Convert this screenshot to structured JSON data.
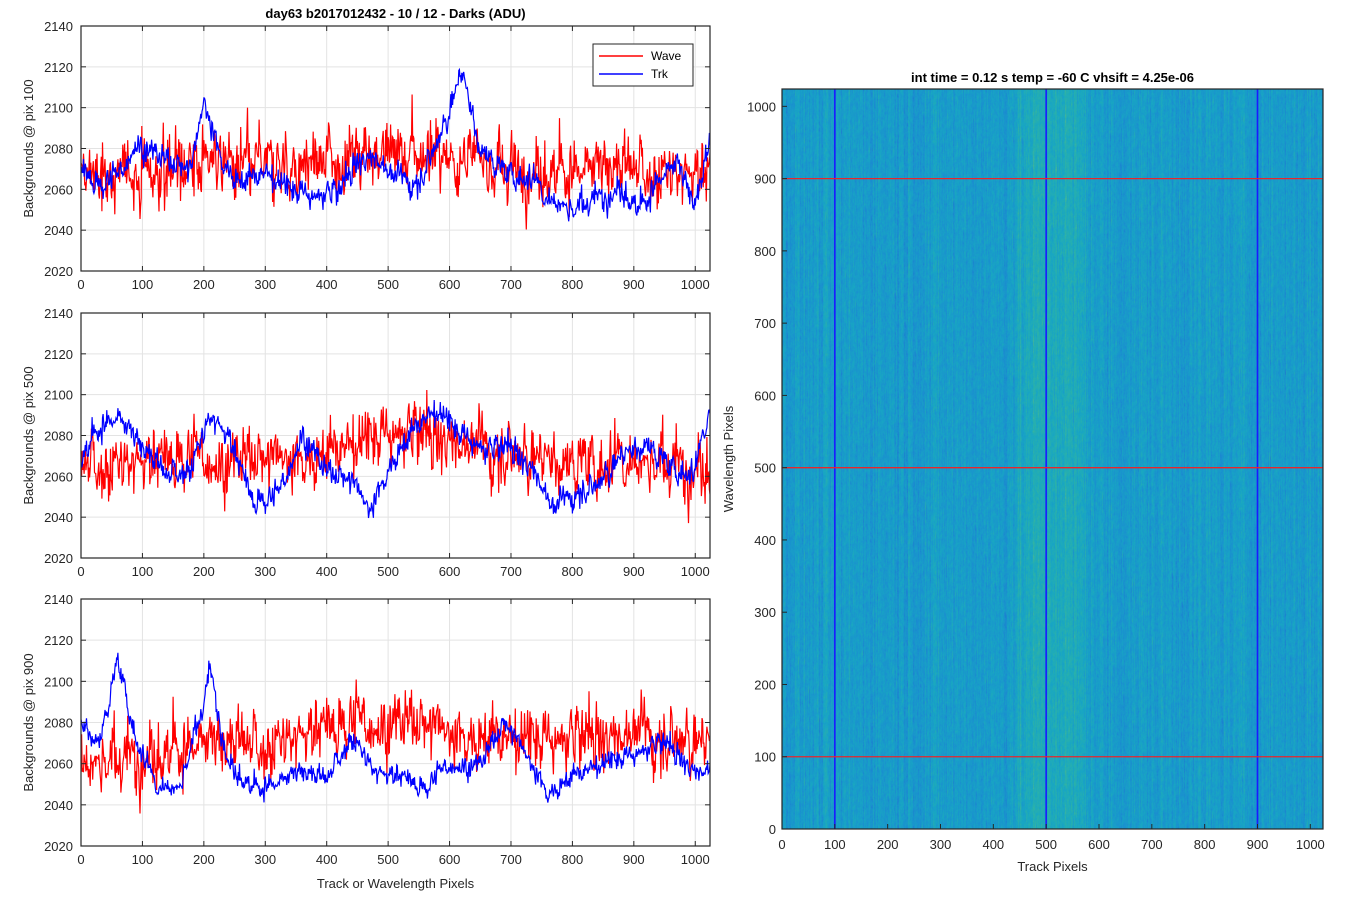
{
  "figure": {
    "main_title": "day63 b2017012432 - 10 / 12 - Darks (ADU)"
  },
  "chart_data": [
    {
      "type": "line",
      "name": "pix100",
      "title": "day63 b2017012432 - 10 / 12 - Darks (ADU)",
      "xlabel": "",
      "ylabel": "Backgrounds @ pix 100",
      "xlim": [
        0,
        1024
      ],
      "ylim": [
        2020,
        2140
      ],
      "xticks": [
        "0",
        "100",
        "200",
        "300",
        "400",
        "500",
        "600",
        "700",
        "800",
        "900",
        "1000"
      ],
      "yticks": [
        "2020",
        "2040",
        "2060",
        "2080",
        "2100",
        "2120",
        "2140"
      ],
      "grid": true,
      "legend": {
        "position": "top-right",
        "entries": [
          "Wave",
          "Trk"
        ]
      },
      "series": [
        {
          "name": "Wave",
          "color": "#ff0000",
          "noise_amp": 14,
          "x": [
            0,
            100,
            200,
            300,
            400,
            500,
            600,
            700,
            800,
            900,
            1024
          ],
          "y": [
            2064,
            2068,
            2072,
            2070,
            2074,
            2080,
            2076,
            2070,
            2068,
            2070,
            2068
          ]
        },
        {
          "name": "Trk",
          "color": "#0000ff",
          "noise_amp": 6,
          "x": [
            0,
            30,
            60,
            90,
            120,
            150,
            180,
            200,
            230,
            260,
            300,
            340,
            380,
            420,
            450,
            480,
            510,
            550,
            590,
            620,
            650,
            690,
            730,
            760,
            800,
            840,
            880,
            910,
            940,
            970,
            1000,
            1024
          ],
          "y": [
            2070,
            2062,
            2066,
            2084,
            2078,
            2072,
            2070,
            2104,
            2074,
            2064,
            2068,
            2060,
            2056,
            2058,
            2074,
            2076,
            2066,
            2064,
            2090,
            2118,
            2080,
            2068,
            2066,
            2056,
            2050,
            2056,
            2060,
            2050,
            2064,
            2072,
            2052,
            2082
          ]
        }
      ]
    },
    {
      "type": "line",
      "name": "pix500",
      "title": "",
      "xlabel": "",
      "ylabel": "Backgrounds @ pix 500",
      "xlim": [
        0,
        1024
      ],
      "ylim": [
        2020,
        2140
      ],
      "xticks": [
        "0",
        "100",
        "200",
        "300",
        "400",
        "500",
        "600",
        "700",
        "800",
        "900",
        "1000"
      ],
      "yticks": [
        "2020",
        "2040",
        "2060",
        "2080",
        "2100",
        "2120",
        "2140"
      ],
      "grid": true,
      "series": [
        {
          "name": "Wave",
          "color": "#ff0000",
          "noise_amp": 14,
          "x": [
            0,
            100,
            200,
            300,
            400,
            500,
            600,
            700,
            800,
            900,
            1024
          ],
          "y": [
            2066,
            2068,
            2070,
            2068,
            2072,
            2080,
            2078,
            2072,
            2066,
            2068,
            2064
          ]
        },
        {
          "name": "Trk",
          "color": "#0000ff",
          "noise_amp": 6,
          "x": [
            0,
            30,
            60,
            100,
            140,
            180,
            210,
            240,
            280,
            320,
            360,
            400,
            440,
            470,
            510,
            550,
            580,
            620,
            660,
            700,
            740,
            770,
            800,
            840,
            880,
            920,
            960,
            1000,
            1024
          ],
          "y": [
            2068,
            2084,
            2088,
            2074,
            2060,
            2066,
            2090,
            2080,
            2048,
            2050,
            2082,
            2062,
            2058,
            2044,
            2070,
            2086,
            2092,
            2080,
            2072,
            2074,
            2062,
            2044,
            2052,
            2056,
            2070,
            2076,
            2064,
            2062,
            2096
          ]
        }
      ]
    },
    {
      "type": "line",
      "name": "pix900",
      "title": "",
      "xlabel": "Track or Wavelength Pixels",
      "ylabel": "Backgrounds @ pix 900",
      "xlim": [
        0,
        1024
      ],
      "ylim": [
        2020,
        2140
      ],
      "xticks": [
        "0",
        "100",
        "200",
        "300",
        "400",
        "500",
        "600",
        "700",
        "800",
        "900",
        "1000"
      ],
      "yticks": [
        "2020",
        "2040",
        "2060",
        "2080",
        "2100",
        "2120",
        "2140"
      ],
      "grid": true,
      "series": [
        {
          "name": "Wave",
          "color": "#ff0000",
          "noise_amp": 14,
          "x": [
            0,
            100,
            200,
            300,
            400,
            500,
            600,
            700,
            800,
            900,
            1024
          ],
          "y": [
            2060,
            2064,
            2068,
            2070,
            2078,
            2082,
            2076,
            2072,
            2070,
            2076,
            2070
          ]
        },
        {
          "name": "Trk",
          "color": "#0000ff",
          "noise_amp": 5,
          "x": [
            0,
            30,
            60,
            90,
            120,
            160,
            200,
            210,
            240,
            280,
            320,
            360,
            400,
            440,
            480,
            520,
            560,
            600,
            650,
            690,
            730,
            760,
            800,
            850,
            900,
            950,
            1000,
            1024
          ],
          "y": [
            2080,
            2070,
            2110,
            2072,
            2050,
            2048,
            2090,
            2106,
            2060,
            2048,
            2050,
            2056,
            2052,
            2074,
            2056,
            2054,
            2048,
            2060,
            2060,
            2080,
            2062,
            2046,
            2054,
            2060,
            2064,
            2070,
            2056,
            2058
          ]
        }
      ]
    },
    {
      "type": "heatmap",
      "name": "image",
      "title": "int time = 0.12 s    temp = -60 C    vhsift = 4.25e-06",
      "xlabel": "Track Pixels",
      "ylabel": "Wavelength Pixels",
      "xlim": [
        0,
        1024
      ],
      "ylim": [
        0,
        1024
      ],
      "xticks": [
        "0",
        "100",
        "200",
        "300",
        "400",
        "500",
        "600",
        "700",
        "800",
        "900",
        "1000"
      ],
      "yticks": [
        "0",
        "100",
        "200",
        "300",
        "400",
        "500",
        "600",
        "700",
        "800",
        "900",
        "1000"
      ],
      "colormap": [
        "#1f6fd1",
        "#1a8fd0",
        "#18a6c4",
        "#2db3a6",
        "#6cba7d",
        "#a6bd5a"
      ],
      "bright_band_x": [
        420,
        600
      ],
      "vertical_lines": {
        "positions": [
          100,
          500,
          900
        ],
        "color": "#1a1aff"
      },
      "horizontal_lines": {
        "positions": [
          100,
          500,
          900
        ],
        "color": "#e8262b"
      }
    }
  ]
}
